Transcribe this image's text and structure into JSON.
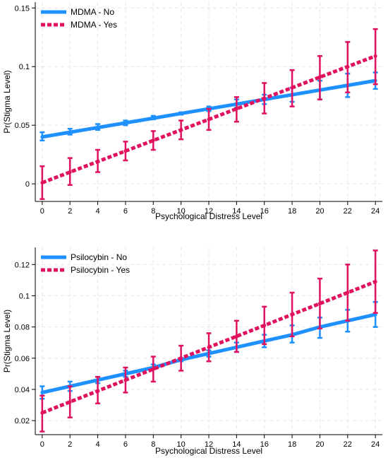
{
  "colors": {
    "no": "#1e90ff",
    "yes": "#e0115f",
    "grid": "#e6e6e6",
    "axis": "#000000"
  },
  "chart_data": [
    {
      "type": "line",
      "xlabel": "Psychological Distress Level",
      "ylabel": "Pr(Stigma Level)",
      "xlim": [
        -0.5,
        24.5
      ],
      "ylim": [
        -0.015,
        0.155
      ],
      "xticks": [
        0,
        2,
        4,
        6,
        8,
        10,
        12,
        14,
        16,
        18,
        20,
        22,
        24
      ],
      "yticks": [
        0,
        0.05,
        0.1,
        0.15
      ],
      "ytick_labels": [
        "0",
        "0.05",
        "0.1",
        "0.15"
      ],
      "grid": true,
      "legend_position": "top-left",
      "x": [
        0,
        2,
        4,
        6,
        8,
        10,
        12,
        14,
        16,
        18,
        20,
        22,
        24
      ],
      "series": [
        {
          "name": "MDMA - No",
          "style": "solid",
          "values": [
            0.04,
            0.044,
            0.048,
            0.052,
            0.056,
            0.06,
            0.064,
            0.068,
            0.072,
            0.076,
            0.08,
            0.084,
            0.088
          ],
          "lower": [
            0.037,
            0.042,
            0.046,
            0.05,
            0.055,
            0.059,
            0.062,
            0.065,
            0.068,
            0.07,
            0.072,
            0.074,
            0.081
          ],
          "upper": [
            0.044,
            0.047,
            0.051,
            0.054,
            0.058,
            0.061,
            0.066,
            0.072,
            0.076,
            0.082,
            0.088,
            0.094,
            0.095
          ]
        },
        {
          "name": "MDMA - Yes",
          "style": "dashed",
          "values": [
            0.001,
            0.01,
            0.019,
            0.028,
            0.037,
            0.046,
            0.055,
            0.064,
            0.073,
            0.082,
            0.091,
            0.1,
            0.109
          ],
          "lower": [
            -0.013,
            -0.001,
            0.01,
            0.02,
            0.029,
            0.038,
            0.046,
            0.053,
            0.06,
            0.066,
            0.072,
            0.078,
            0.085
          ],
          "upper": [
            0.015,
            0.022,
            0.029,
            0.036,
            0.045,
            0.054,
            0.064,
            0.074,
            0.086,
            0.097,
            0.109,
            0.121,
            0.132
          ]
        }
      ]
    },
    {
      "type": "line",
      "xlabel": "Psychological Distress Level",
      "ylabel": "Pr(Stigma Level)",
      "xlim": [
        -0.5,
        24.5
      ],
      "ylim": [
        0.011,
        0.131
      ],
      "xticks": [
        0,
        2,
        4,
        6,
        8,
        10,
        12,
        14,
        16,
        18,
        20,
        22,
        24
      ],
      "yticks": [
        0.02,
        0.04,
        0.06,
        0.08,
        0.1,
        0.12
      ],
      "ytick_labels": [
        "0.02",
        "0.04",
        "0.06",
        "0.08",
        "0.1",
        "0.12"
      ],
      "grid": true,
      "legend_position": "top-left",
      "x": [
        0,
        2,
        4,
        6,
        8,
        10,
        12,
        14,
        16,
        18,
        20,
        22,
        24
      ],
      "series": [
        {
          "name": "Psilocybin - No",
          "style": "solid",
          "values": [
            0.038,
            0.042,
            0.046,
            0.05,
            0.054,
            0.059,
            0.063,
            0.067,
            0.071,
            0.075,
            0.08,
            0.084,
            0.088
          ],
          "lower": [
            0.034,
            0.039,
            0.044,
            0.048,
            0.053,
            0.058,
            0.061,
            0.064,
            0.067,
            0.07,
            0.073,
            0.077,
            0.08
          ],
          "upper": [
            0.042,
            0.045,
            0.048,
            0.052,
            0.056,
            0.06,
            0.065,
            0.07,
            0.075,
            0.081,
            0.086,
            0.091,
            0.096
          ]
        },
        {
          "name": "Psilocybin - Yes",
          "style": "dashed",
          "values": [
            0.025,
            0.032,
            0.039,
            0.046,
            0.053,
            0.06,
            0.067,
            0.074,
            0.081,
            0.088,
            0.095,
            0.102,
            0.109
          ],
          "lower": [
            0.013,
            0.022,
            0.031,
            0.038,
            0.045,
            0.052,
            0.058,
            0.064,
            0.069,
            0.074,
            0.079,
            0.084,
            0.089
          ],
          "upper": [
            0.036,
            0.042,
            0.048,
            0.054,
            0.061,
            0.068,
            0.076,
            0.084,
            0.093,
            0.102,
            0.111,
            0.12,
            0.129
          ]
        }
      ]
    }
  ]
}
